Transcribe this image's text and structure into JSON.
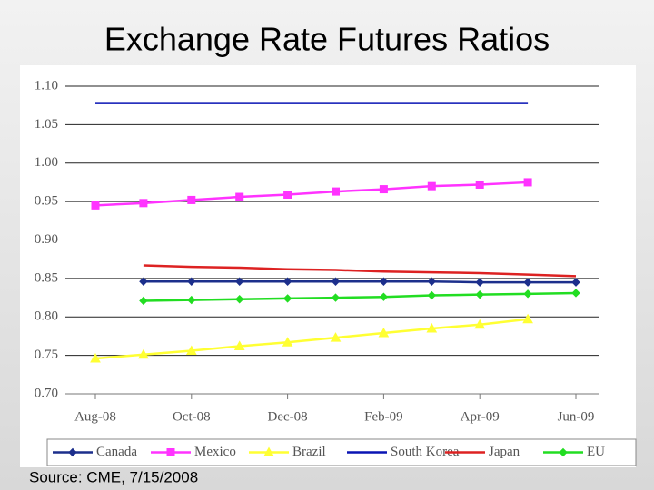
{
  "chart_data": {
    "type": "line",
    "title": "Exchange Rate Futures Ratios",
    "source": "Source:  CME, 7/15/2008",
    "categories": [
      "Aug-08",
      null,
      "Oct-08",
      null,
      "Dec-08",
      null,
      "Feb-09",
      null,
      "Apr-09",
      null,
      "Jun-09"
    ],
    "ylim": [
      0.7,
      1.1
    ],
    "yticks": [
      {
        "value": 0.7,
        "label": "0.70"
      },
      0.75,
      {
        "value": 0.8,
        "label": "0.80"
      },
      0.85,
      {
        "value": 0.9,
        "label": "0.90"
      },
      0.95,
      {
        "value": 1.0,
        "label": "1.00"
      },
      1.05,
      {
        "value": 1.1,
        "label": "1.10"
      }
    ],
    "grid": true,
    "legend": "bottom",
    "series": [
      {
        "name": "Canada",
        "color": "#1c2f8c",
        "marker": "diamond",
        "values": [
          null,
          0.846,
          0.846,
          0.846,
          0.846,
          0.846,
          0.846,
          0.846,
          0.845,
          0.845,
          0.845
        ]
      },
      {
        "name": "Mexico",
        "color": "#ff33ff",
        "marker": "square",
        "values": [
          0.945,
          0.948,
          0.952,
          0.956,
          0.959,
          0.963,
          0.966,
          0.97,
          0.972,
          0.975,
          null
        ]
      },
      {
        "name": "Brazil",
        "color": "#ffff33",
        "marker": "triangle",
        "values": [
          0.746,
          0.751,
          0.756,
          0.762,
          0.767,
          0.773,
          0.779,
          0.785,
          0.79,
          0.797,
          null
        ]
      },
      {
        "name": "South Korea",
        "color": "#0a14b4",
        "marker": "none",
        "values": [
          1.078,
          1.078,
          1.078,
          1.078,
          1.078,
          1.078,
          1.078,
          1.078,
          1.078,
          1.078,
          null
        ]
      },
      {
        "name": "Japan",
        "color": "#dd2222",
        "marker": "none",
        "values": [
          null,
          0.867,
          0.865,
          0.864,
          0.862,
          0.861,
          0.859,
          0.858,
          0.857,
          0.855,
          0.853
        ]
      },
      {
        "name": "EU",
        "color": "#22dd22",
        "marker": "diamond",
        "values": [
          null,
          0.821,
          0.822,
          0.823,
          0.824,
          0.825,
          0.826,
          0.828,
          0.829,
          0.83,
          0.831
        ]
      }
    ]
  }
}
